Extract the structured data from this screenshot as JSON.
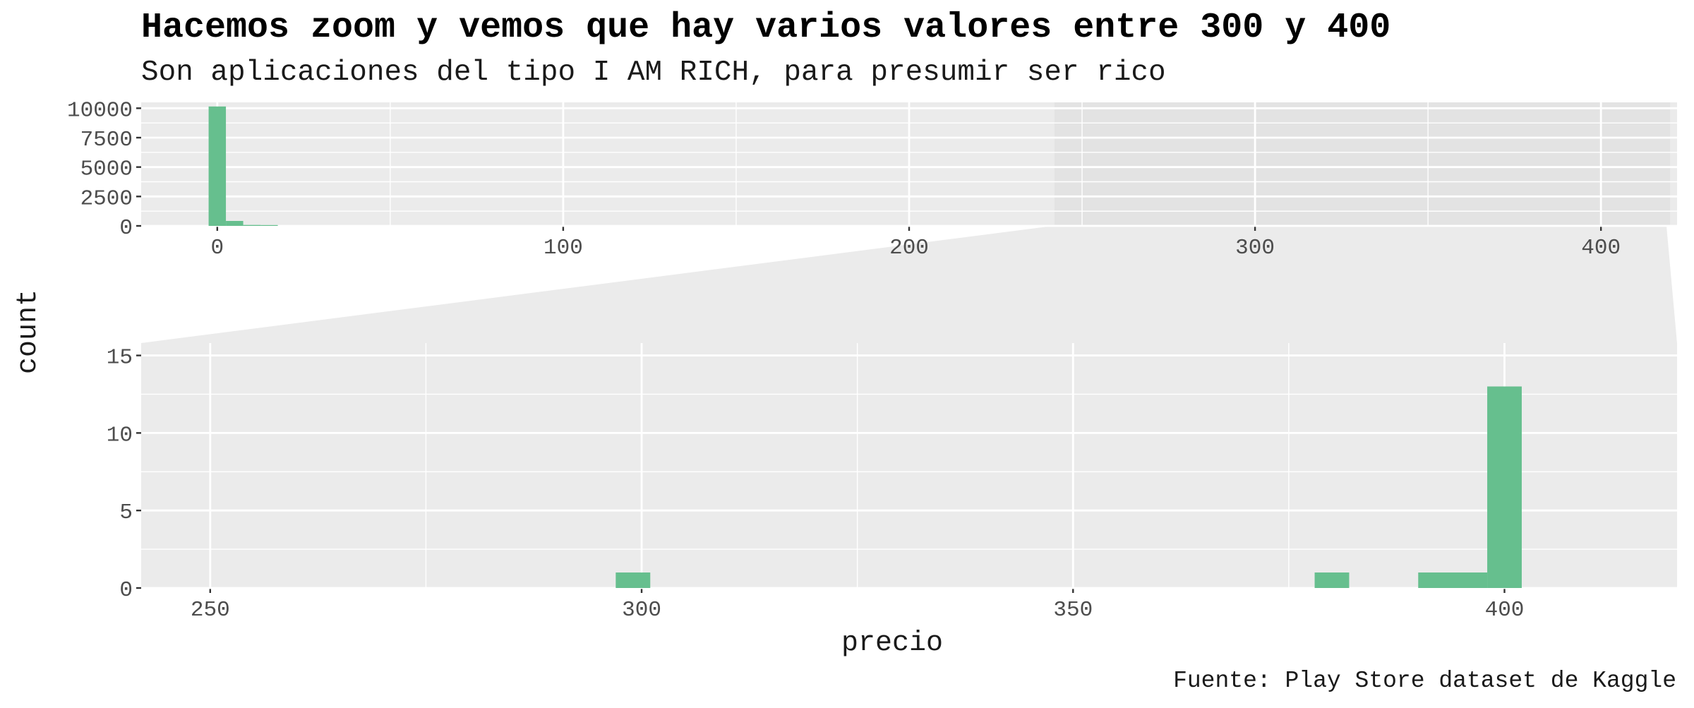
{
  "chart_data": {
    "type": "bar",
    "title": "Hacemos zoom y vemos que hay varios valores entre 300 y 400",
    "subtitle": "Son aplicaciones del tipo I AM RICH, para presumir ser rico",
    "caption": "Fuente: Play Store dataset de Kaggle",
    "xlabel": "precio",
    "ylabel": "count",
    "bar_color": "#66BF8E",
    "panel_background": "#EBEBEB",
    "zoom_highlight": "#E3E3E3",
    "overview": {
      "xlim": [
        -22,
        422
      ],
      "ylim": [
        0,
        10500
      ],
      "x_ticks": [
        0,
        100,
        200,
        300,
        400
      ],
      "y_ticks": [
        0,
        2500,
        5000,
        7500,
        10000
      ],
      "zoom_range": [
        242,
        420
      ],
      "bins": [
        {
          "x0": -2.5,
          "x1": 2.5,
          "count": 10150
        },
        {
          "x0": 2.5,
          "x1": 7.5,
          "count": 420
        },
        {
          "x0": 7.5,
          "x1": 12.5,
          "count": 80
        },
        {
          "x0": 12.5,
          "x1": 17.5,
          "count": 20
        }
      ]
    },
    "zoom": {
      "xlim": [
        242,
        420
      ],
      "ylim": [
        0,
        15.8
      ],
      "x_ticks": [
        250,
        300,
        350,
        400
      ],
      "y_ticks": [
        0,
        5,
        10,
        15
      ],
      "bins": [
        {
          "x0": 297,
          "x1": 301,
          "count": 1
        },
        {
          "x0": 378,
          "x1": 382,
          "count": 1
        },
        {
          "x0": 390,
          "x1": 398,
          "count": 1
        },
        {
          "x0": 398,
          "x1": 402,
          "count": 13
        }
      ]
    }
  }
}
